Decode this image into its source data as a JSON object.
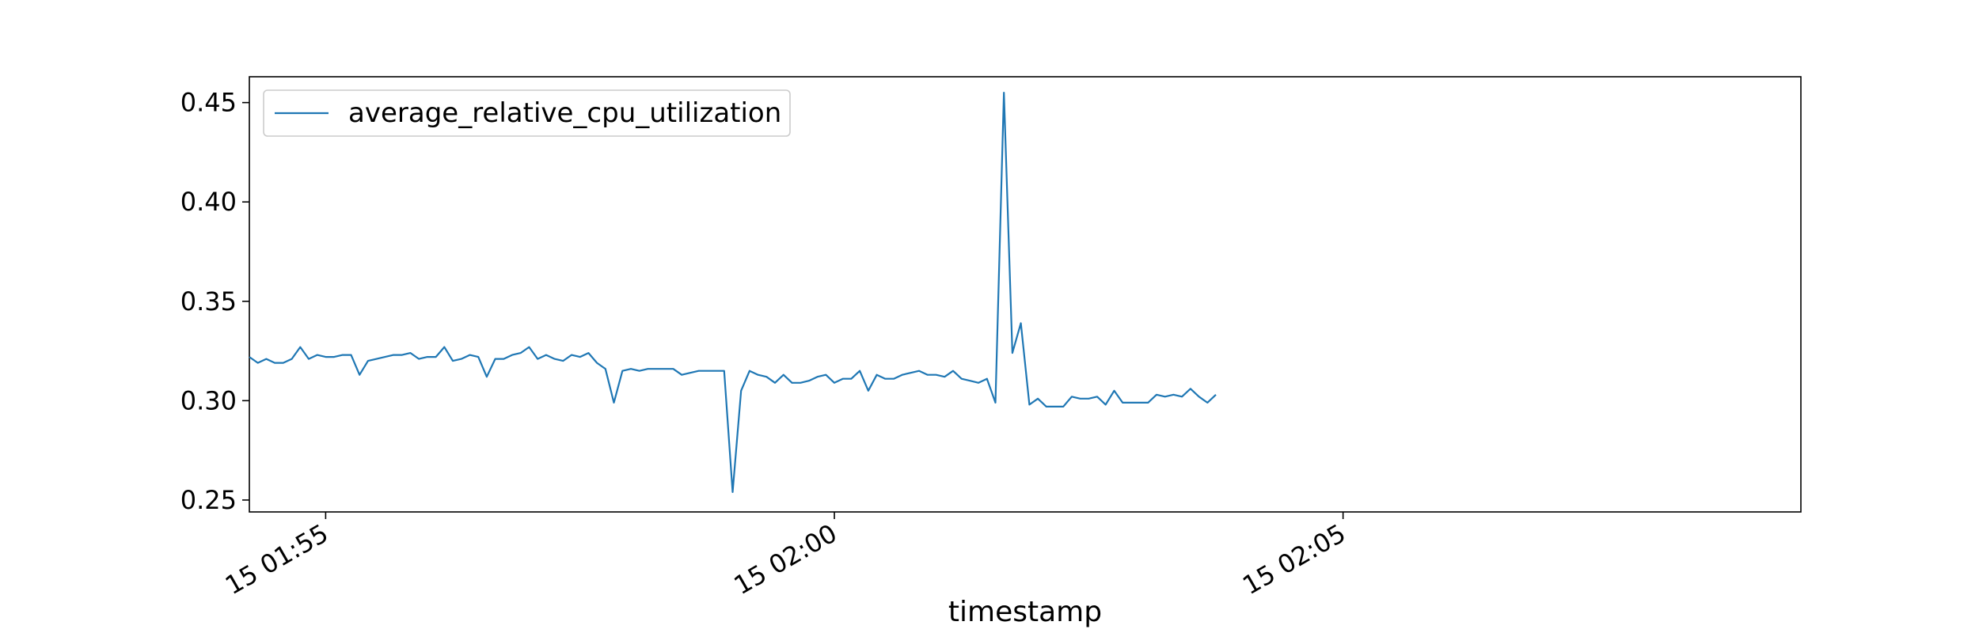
{
  "chart_data": {
    "type": "line",
    "title": "",
    "xlabel": "timestamp",
    "ylabel": "",
    "x_start": "15 01:54:15",
    "x_step_seconds": 5,
    "xlim": [
      "15 01:54:15",
      "15 02:09:30"
    ],
    "ylim": [
      0.244,
      0.463
    ],
    "xticks": [
      {
        "label": "15 01:55",
        "time": "15 01:55:00"
      },
      {
        "label": "15 02:00",
        "time": "15 02:00:00"
      },
      {
        "label": "15 02:05",
        "time": "15 02:05:00"
      }
    ],
    "yticks": [
      {
        "label": "0.25",
        "value": 0.25
      },
      {
        "label": "0.30",
        "value": 0.3
      },
      {
        "label": "0.35",
        "value": 0.35
      },
      {
        "label": "0.40",
        "value": 0.4
      },
      {
        "label": "0.45",
        "value": 0.45
      }
    ],
    "grid": false,
    "legend_position": "top-left",
    "series": [
      {
        "name": "average_relative_cpu_utilization",
        "color": "#1f77b4",
        "values": [
          0.322,
          0.319,
          0.321,
          0.319,
          0.319,
          0.321,
          0.327,
          0.321,
          0.323,
          0.322,
          0.322,
          0.323,
          0.323,
          0.313,
          0.32,
          0.321,
          0.322,
          0.323,
          0.323,
          0.324,
          0.321,
          0.322,
          0.322,
          0.327,
          0.32,
          0.321,
          0.323,
          0.322,
          0.312,
          0.321,
          0.321,
          0.323,
          0.324,
          0.327,
          0.321,
          0.323,
          0.321,
          0.32,
          0.323,
          0.322,
          0.324,
          0.319,
          0.316,
          0.299,
          0.315,
          0.316,
          0.315,
          0.316,
          0.316,
          0.316,
          0.316,
          0.313,
          0.314,
          0.315,
          0.315,
          0.315,
          0.315,
          0.254,
          0.305,
          0.315,
          0.313,
          0.312,
          0.309,
          0.313,
          0.309,
          0.309,
          0.31,
          0.312,
          0.313,
          0.309,
          0.311,
          0.311,
          0.315,
          0.305,
          0.313,
          0.311,
          0.311,
          0.313,
          0.314,
          0.315,
          0.313,
          0.313,
          0.312,
          0.315,
          0.311,
          0.31,
          0.309,
          0.311,
          0.299,
          0.455,
          0.324,
          0.339,
          0.298,
          0.301,
          0.297,
          0.297,
          0.297,
          0.302,
          0.301,
          0.301,
          0.302,
          0.298,
          0.305,
          0.299,
          0.299,
          0.299,
          0.299,
          0.303,
          0.302,
          0.303,
          0.302,
          0.306,
          0.302,
          0.299,
          0.303
        ]
      }
    ]
  }
}
